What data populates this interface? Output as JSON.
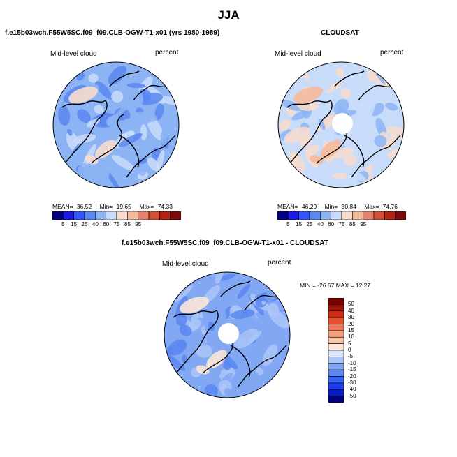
{
  "season_title": "JJA",
  "palette_main": [
    "#000080",
    "#1a1ae6",
    "#3355ff",
    "#5a87f0",
    "#8cb4f5",
    "#c8dcfa",
    "#f7dccd",
    "#f5b99b",
    "#e6826e",
    "#d25037",
    "#b42314",
    "#7d0a0a"
  ],
  "palette_diff": [
    "#000080",
    "#0a19c8",
    "#1e3cf0",
    "#3a64f5",
    "#5a87f0",
    "#82a8f3",
    "#acc6f7",
    "#d8e6fb",
    "#fbe6d7",
    "#f7c4a6",
    "#f4a07e",
    "#f07a55",
    "#e8502d",
    "#d22a12",
    "#a01408",
    "#780000"
  ],
  "panels": [
    {
      "id": "model",
      "title": "f.e15b03wch.F55W5SC.f09_f09.CLB-OGW-T1-x01 (yrs 1980-1989)",
      "field_label": "Mid-level cloud",
      "units_label": "percent",
      "stats": {
        "mean_label": "MEAN=",
        "mean": "36.52",
        "min_label": "Min=",
        "min": "19.65",
        "max_label": "Max=",
        "max": "74.33"
      },
      "colorbar_ticks": [
        "5",
        "15",
        "25",
        "40",
        "60",
        "75",
        "85",
        "95"
      ]
    },
    {
      "id": "obs",
      "title": "CLOUDSAT",
      "field_label": "Mid-level cloud",
      "units_label": "percent",
      "stats": {
        "mean_label": "MEAN=",
        "mean": "46.29",
        "min_label": "Min=",
        "min": "30.84",
        "max_label": "Max=",
        "max": "74.76"
      },
      "colorbar_ticks": [
        "5",
        "15",
        "25",
        "40",
        "60",
        "75",
        "85",
        "95"
      ]
    },
    {
      "id": "diff",
      "title": "f.e15b03wch.F55W5SC.f09_f09.CLB-OGW-T1-x01 - CLOUDSAT",
      "field_label": "Mid-level cloud",
      "units_label": "percent",
      "stats_line": "MIN = -26.57  MAX =  12.27",
      "colorbar_ticks": [
        "50",
        "40",
        "30",
        "20",
        "15",
        "10",
        "5",
        "0",
        "-5",
        "-10",
        "-15",
        "-20",
        "-30",
        "-40",
        "-50"
      ]
    }
  ],
  "chart_data": [
    {
      "type": "heatmap",
      "projection": "north polar stereographic",
      "title": "f.e15b03wch.F55W5SC.f09_f09.CLB-OGW-T1-x01 (yrs 1980-1989)",
      "variable": "Mid-level cloud",
      "units": "percent",
      "mean": 36.52,
      "min": 19.65,
      "max": 74.33,
      "levels": [
        5,
        15,
        25,
        40,
        60,
        75,
        85,
        95
      ]
    },
    {
      "type": "heatmap",
      "projection": "north polar stereographic",
      "title": "CLOUDSAT",
      "variable": "Mid-level cloud",
      "units": "percent",
      "mean": 46.29,
      "min": 30.84,
      "max": 74.76,
      "levels": [
        5,
        15,
        25,
        40,
        60,
        75,
        85,
        95
      ]
    },
    {
      "type": "heatmap",
      "projection": "north polar stereographic",
      "title": "f.e15b03wch.F55W5SC.f09_f09.CLB-OGW-T1-x01 - CLOUDSAT",
      "variable": "Mid-level cloud",
      "units": "percent",
      "min": -26.57,
      "max": 12.27,
      "levels": [
        -50,
        -40,
        -30,
        -20,
        -15,
        -10,
        -5,
        0,
        5,
        10,
        15,
        20,
        30,
        40,
        50
      ]
    }
  ]
}
